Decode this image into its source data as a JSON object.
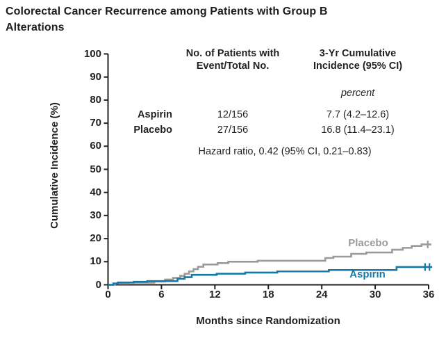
{
  "title_line1": "Colorectal Cancer Recurrence among Patients with Group B",
  "title_line2": "Alterations",
  "colors": {
    "aspirin_blue": "#1579a7",
    "placebo_gray": "#9a9a9a",
    "text": "#231f20",
    "axis": "#231f20"
  },
  "stats_table": {
    "col2_header_line1": "No. of Patients with",
    "col2_header_line2": "Event/Total No.",
    "col3_header_line1": "3-Yr Cumulative",
    "col3_header_line2": "Incidence (95% CI)",
    "unit_note": "percent",
    "rows": [
      {
        "label": "Aspirin",
        "events_total": "12/156",
        "incidence": "7.7 (4.2–12.6)"
      },
      {
        "label": "Placebo",
        "events_total": "27/156",
        "incidence": "16.8 (11.4–23.1)"
      }
    ],
    "hazard_ratio_note": "Hazard ratio, 0.42 (95% CI, 0.21–0.83)"
  },
  "chart_data": {
    "type": "line",
    "subtype": "cumulative-incidence-step",
    "title": "Colorectal Cancer Recurrence among Patients with Group B Alterations",
    "xlabel": "Months since Randomization",
    "ylabel": "Cumulative Incidence (%)",
    "xlim": [
      0,
      36
    ],
    "ylim": [
      0,
      100
    ],
    "x_ticks": [
      0,
      6,
      12,
      18,
      24,
      30,
      36
    ],
    "y_ticks": [
      0,
      10,
      20,
      30,
      40,
      50,
      60,
      70,
      80,
      90,
      100
    ],
    "grid": false,
    "legend_position": "labels-near-line-end",
    "series": [
      {
        "name": "Placebo",
        "color": "#9a9a9a",
        "steps": [
          [
            0,
            0
          ],
          [
            0.8,
            0.5
          ],
          [
            2.3,
            0.9
          ],
          [
            5.2,
            1.4
          ],
          [
            6.4,
            2.3
          ],
          [
            7.3,
            3.0
          ],
          [
            8.1,
            3.9
          ],
          [
            8.6,
            4.8
          ],
          [
            9.1,
            5.8
          ],
          [
            9.6,
            6.8
          ],
          [
            10.1,
            7.8
          ],
          [
            10.7,
            8.8
          ],
          [
            12.3,
            9.4
          ],
          [
            13.5,
            10.0
          ],
          [
            16.8,
            10.4
          ],
          [
            24.4,
            11.6
          ],
          [
            25.3,
            12.2
          ],
          [
            27.3,
            13.4
          ],
          [
            29.0,
            14.0
          ],
          [
            31.9,
            15.2
          ],
          [
            33.1,
            16.0
          ],
          [
            34.1,
            16.8
          ],
          [
            35.2,
            17.5
          ],
          [
            36.3,
            17.5
          ]
        ],
        "censor_marks": [
          [
            35.9,
            17.5
          ]
        ],
        "three_yr_cumulative_incidence_pct": 16.8
      },
      {
        "name": "Aspirin",
        "color": "#1579a7",
        "steps": [
          [
            0,
            0
          ],
          [
            0.6,
            0.6
          ],
          [
            1.1,
            1.0
          ],
          [
            2.9,
            1.3
          ],
          [
            4.4,
            1.6
          ],
          [
            7.8,
            2.6
          ],
          [
            8.6,
            3.3
          ],
          [
            9.4,
            4.3
          ],
          [
            12.2,
            4.8
          ],
          [
            15.4,
            5.3
          ],
          [
            19.0,
            5.8
          ],
          [
            24.8,
            6.4
          ],
          [
            32.4,
            7.7
          ],
          [
            36.4,
            7.7
          ]
        ],
        "censor_marks": [
          [
            35.6,
            7.7
          ],
          [
            36.1,
            7.7
          ]
        ],
        "three_yr_cumulative_incidence_pct": 7.7
      }
    ]
  }
}
